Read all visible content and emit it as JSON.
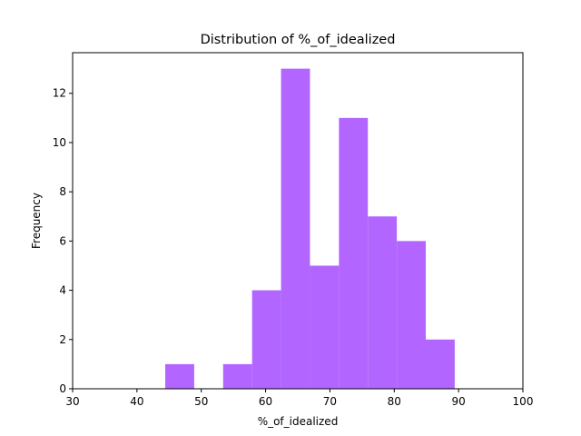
{
  "chart_data": {
    "type": "bar",
    "title": "Distribution of  %_of_idealized",
    "xlabel": "%_of_idealized",
    "ylabel": "Frequency",
    "xlim": [
      30,
      100
    ],
    "ylim": [
      0,
      13.65
    ],
    "xticks": [
      30,
      40,
      50,
      60,
      70,
      80,
      90,
      100
    ],
    "yticks": [
      0,
      2,
      4,
      6,
      8,
      10,
      12
    ],
    "bar_color": "#b266ff",
    "bins": [
      {
        "x0": 44.4,
        "x1": 48.9,
        "count": 1
      },
      {
        "x0": 48.9,
        "x1": 53.4,
        "count": 0
      },
      {
        "x0": 53.4,
        "x1": 57.9,
        "count": 1
      },
      {
        "x0": 57.9,
        "x1": 62.4,
        "count": 4
      },
      {
        "x0": 62.4,
        "x1": 66.9,
        "count": 13
      },
      {
        "x0": 66.9,
        "x1": 71.4,
        "count": 5
      },
      {
        "x0": 71.4,
        "x1": 75.9,
        "count": 11
      },
      {
        "x0": 75.9,
        "x1": 80.4,
        "count": 7
      },
      {
        "x0": 80.4,
        "x1": 84.9,
        "count": 6
      },
      {
        "x0": 84.9,
        "x1": 89.4,
        "count": 2
      }
    ]
  }
}
